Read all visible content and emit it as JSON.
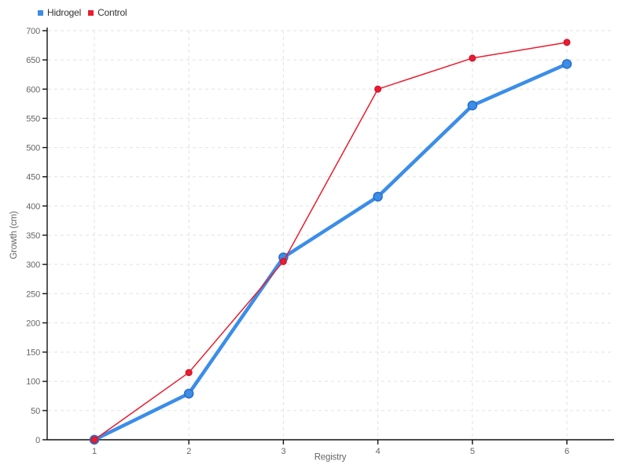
{
  "chart_data": {
    "type": "line",
    "title": "",
    "xlabel": "Registry",
    "ylabel": "Growth (cm)",
    "x": [
      1,
      2,
      3,
      4,
      5,
      6
    ],
    "x_tick_labels": [
      "1",
      "2",
      "3",
      "4",
      "5",
      "6"
    ],
    "y_ticks": [
      0,
      50,
      100,
      150,
      200,
      250,
      300,
      350,
      400,
      450,
      500,
      550,
      600,
      650,
      700
    ],
    "ylim": [
      0,
      700
    ],
    "grid": true,
    "legend_position": "top-left",
    "series": [
      {
        "name": "Hidrogel",
        "color": "#3b8de8",
        "marker_stroke": "#2b6fc4",
        "line_width": 4.5,
        "marker_radius": 5.5,
        "marker_stroke_width": 1.5,
        "values": [
          0,
          79,
          312,
          416,
          572,
          643
        ]
      },
      {
        "name": "Control",
        "color": "#ec1b2d",
        "marker_stroke": "#c8102a",
        "line_width": 1.5,
        "marker_radius": 4,
        "marker_stroke_width": 1,
        "values": [
          0,
          115,
          305,
          600,
          653,
          680
        ]
      }
    ],
    "colors": {
      "grid": "#e2e2e2",
      "axis": "#111111",
      "tick_text": "#666666",
      "legend_text": "#333333",
      "background": "#ffffff"
    }
  }
}
